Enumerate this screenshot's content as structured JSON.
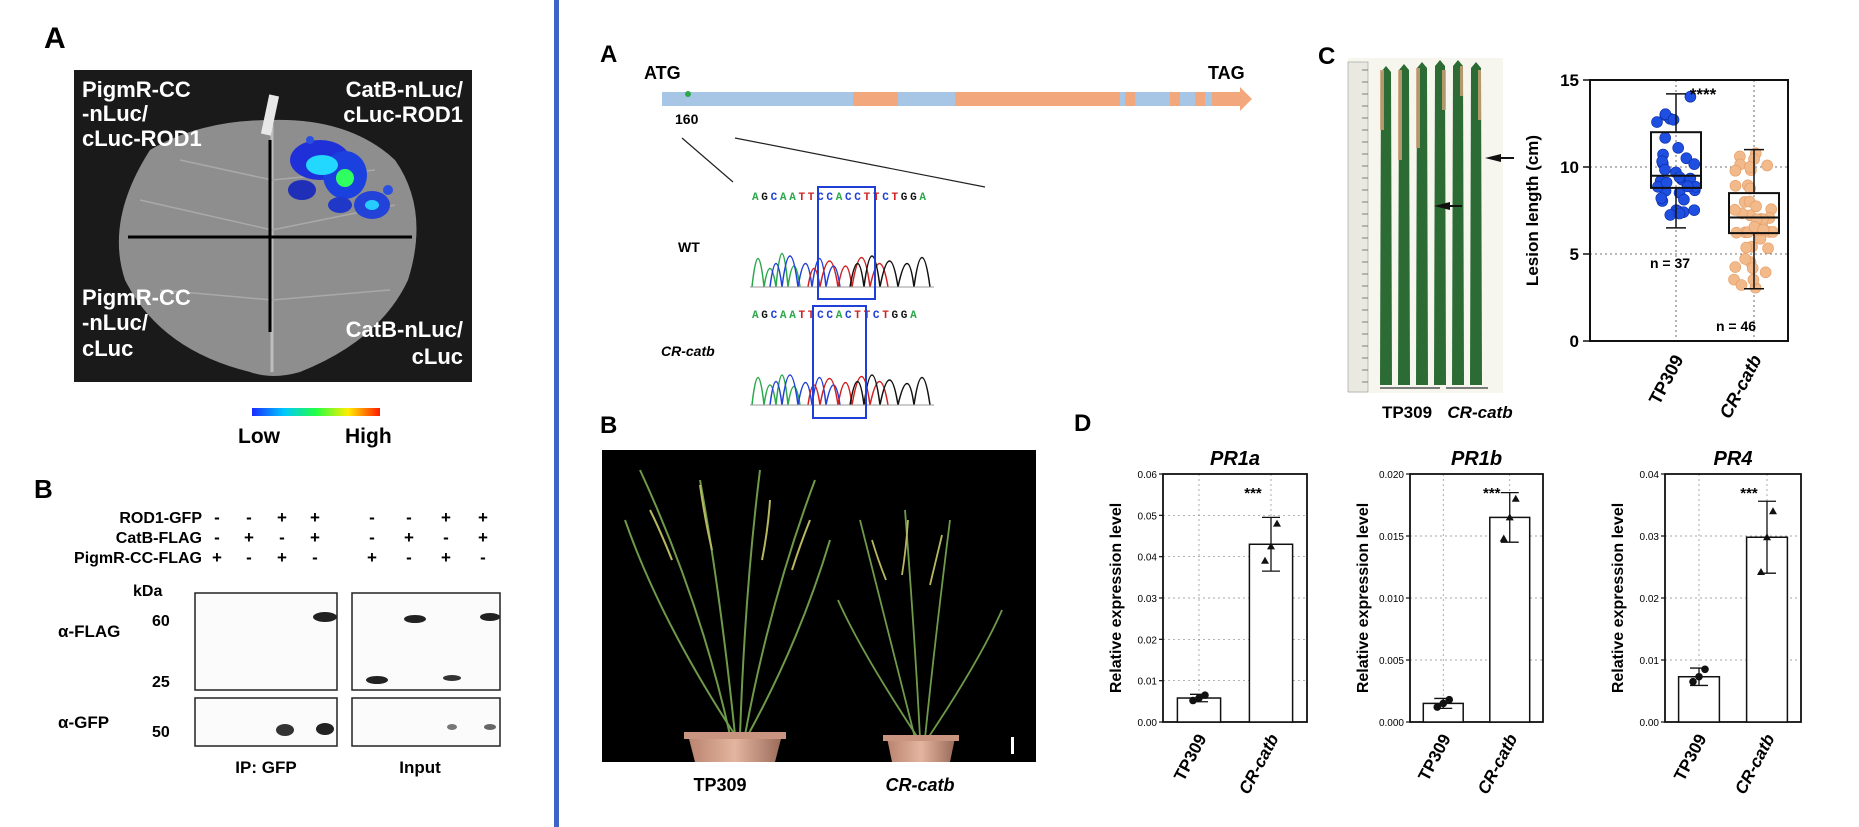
{
  "left": {
    "panelA": {
      "label": "A",
      "quadrants": {
        "tl": [
          "PigmR-CC",
          "-nLuc/",
          "cLuc-ROD1"
        ],
        "tr": [
          "CatB-nLuc/",
          "cLuc-ROD1"
        ],
        "bl": [
          "PigmR-CC",
          "-nLuc/",
          "cLuc"
        ],
        "br": [
          "CatB-nLuc/",
          "cLuc"
        ]
      },
      "scale_low": "Low",
      "scale_high": "High"
    },
    "panelB": {
      "label": "B",
      "rows": [
        {
          "name": "ROD1-GFP",
          "marks": [
            "-",
            "-",
            "+",
            "+",
            "-",
            "-",
            "+",
            "+"
          ]
        },
        {
          "name": "CatB-FLAG",
          "marks": [
            "-",
            "+",
            "-",
            "+",
            "-",
            "+",
            "-",
            "+"
          ]
        },
        {
          "name": "PigmR-CC-FLAG",
          "marks": [
            "+",
            "-",
            "+",
            "-",
            "+",
            "-",
            "+",
            "-"
          ]
        }
      ],
      "kda": "kDa",
      "flag_label": "α-FLAG",
      "gfp_label": "α-GFP",
      "mw_60": "60",
      "mw_25": "25",
      "mw_50": "50",
      "ip_label": "IP: GFP",
      "input_label": "Input"
    }
  },
  "right": {
    "panelA": {
      "label": "A",
      "atg": "ATG",
      "tag": "TAG",
      "pos": "160",
      "wt_label": "WT",
      "cr_label": "CR-catb",
      "wt_seq": "AGCAATTCCACCTTCTGGA",
      "cr_seq": "AGCAATTCCACTTCTGGA"
    },
    "panelB": {
      "label": "B",
      "left_plant": "TP309",
      "right_plant": "CR-catb"
    },
    "panelC": {
      "label": "C",
      "leaf_tp": "TP309",
      "leaf_cr": "CR-catb"
    },
    "panelD": {
      "label": "D"
    }
  },
  "chart_data": [
    {
      "type": "box",
      "ylabel": "Lesion length (cm)",
      "ylim": [
        0,
        15
      ],
      "yticks": [
        0,
        5,
        10,
        15
      ],
      "categories": [
        "TP309",
        "CR-catb"
      ],
      "boxes": [
        {
          "name": "TP309",
          "whisker_low": 6.5,
          "q1": 8.8,
          "median": 9.5,
          "q3": 12.0,
          "whisker_high": 14.2,
          "n_label": "n = 37",
          "color": "#1f4fe0"
        },
        {
          "name": "CR-catb",
          "whisker_low": 3.0,
          "q1": 6.2,
          "median": 7.1,
          "q3": 8.5,
          "whisker_high": 11.0,
          "n_label": "n = 46",
          "color": "#f2b98a"
        }
      ],
      "significance": "****",
      "grid": "dotted"
    },
    {
      "type": "bar",
      "title": "PR1a",
      "ylabel": "Relative expression level",
      "ylim": [
        0,
        0.06
      ],
      "yticks": [
        "0.00",
        "0.01",
        "0.02",
        "0.03",
        "0.04",
        "0.05",
        "0.06"
      ],
      "categories": [
        "TP309",
        "CR-catb"
      ],
      "values": [
        0.0058,
        0.043
      ],
      "errors": [
        0.0009,
        0.0065
      ],
      "points": [
        [
          0.0052,
          0.0058,
          0.0065
        ],
        [
          0.039,
          0.0425,
          0.048
        ]
      ],
      "markers": [
        "circle",
        "triangle"
      ],
      "significance": "***"
    },
    {
      "type": "bar",
      "title": "PR1b",
      "ylabel": "Relative expression level",
      "ylim": [
        0,
        0.02
      ],
      "yticks": [
        "0.000",
        "0.005",
        "0.010",
        "0.015",
        "0.020"
      ],
      "categories": [
        "TP309",
        "CR-catb"
      ],
      "values": [
        0.0015,
        0.0165
      ],
      "errors": [
        0.0004,
        0.002
      ],
      "points": [
        [
          0.0012,
          0.0015,
          0.0018
        ],
        [
          0.0148,
          0.0165,
          0.018
        ]
      ],
      "markers": [
        "circle",
        "triangle"
      ],
      "significance": "***"
    },
    {
      "type": "bar",
      "title": "PR4",
      "ylabel": "Relative expression level",
      "ylim": [
        0,
        0.04
      ],
      "yticks": [
        "0.00",
        "0.01",
        "0.02",
        "0.03",
        "0.04"
      ],
      "categories": [
        "TP309",
        "CR-catb"
      ],
      "values": [
        0.0073,
        0.0298
      ],
      "errors": [
        0.0014,
        0.0058
      ],
      "points": [
        [
          0.0065,
          0.0073,
          0.0085
        ],
        [
          0.0242,
          0.0298,
          0.034
        ]
      ],
      "markers": [
        "circle",
        "triangle"
      ],
      "significance": "***"
    }
  ]
}
